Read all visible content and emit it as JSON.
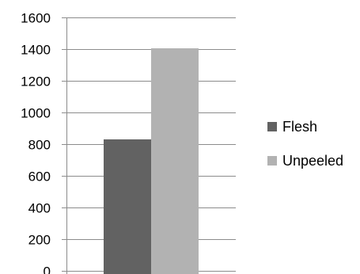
{
  "chart_data": {
    "type": "bar",
    "title": "",
    "xlabel": "",
    "ylabel": "",
    "categories": [
      ""
    ],
    "series": [
      {
        "name": "Flesh",
        "values": [
          830
        ],
        "color": "#626262"
      },
      {
        "name": "Unpeeled",
        "values": [
          1405
        ],
        "color": "#b2b2b2"
      }
    ],
    "ylim": [
      0,
      1600
    ],
    "yticks": [
      0,
      200,
      400,
      600,
      800,
      1000,
      1200,
      1400,
      1600
    ],
    "ytick_labels": [
      "0",
      "200",
      "400",
      "600",
      "800",
      "1000",
      "1200",
      "1400",
      "1600"
    ],
    "grid": true,
    "grid_color": "#8c8c8c",
    "legend_position": "right"
  }
}
